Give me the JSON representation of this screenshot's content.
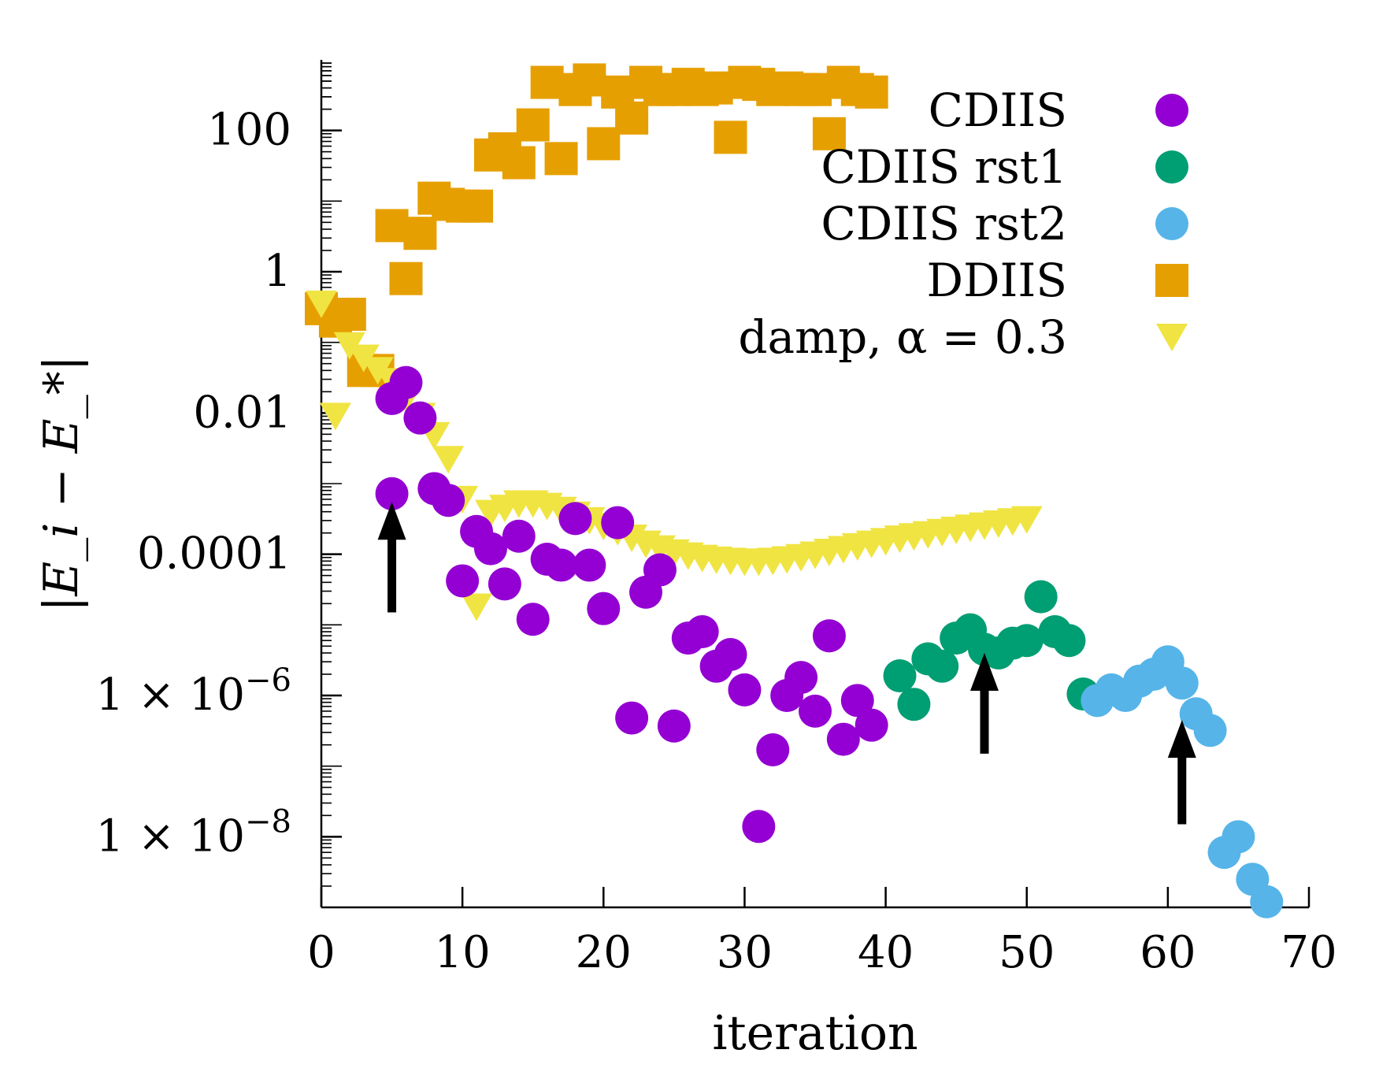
{
  "chart_data": {
    "type": "scatter",
    "xlabel": "iteration",
    "ylabel": "|E_i − E_*|",
    "xlim": [
      0,
      70
    ],
    "ylim_log10": [
      -9,
      3
    ],
    "y_scale": "log",
    "x_ticks": [
      0,
      10,
      20,
      30,
      40,
      50,
      60,
      70
    ],
    "x_tick_labels": [
      "0",
      "10",
      "20",
      "30",
      "40",
      "50",
      "60",
      "70"
    ],
    "y_ticks_log10": [
      2,
      0,
      -2,
      -4,
      -6,
      -8
    ],
    "y_tick_labels": [
      {
        "mantissa": "100",
        "exp": ""
      },
      {
        "mantissa": "1",
        "exp": ""
      },
      {
        "mantissa": "0.01",
        "exp": ""
      },
      {
        "mantissa": "0.0001",
        "exp": ""
      },
      {
        "mantissa": "1 × 10",
        "exp": "−6"
      },
      {
        "mantissa": "1 × 10",
        "exp": "−8"
      }
    ],
    "legend_position": "top-right",
    "series": [
      {
        "name": "CDIIS",
        "color": "#9400d3",
        "marker": "circle",
        "points": [
          [
            5,
            0.016
          ],
          [
            6,
            0.027
          ],
          [
            7,
            0.0085
          ],
          [
            5,
            0.00072
          ],
          [
            8,
            0.00085
          ],
          [
            9,
            0.00058
          ],
          [
            11,
            0.00021
          ],
          [
            12,
            0.00012
          ],
          [
            14,
            0.00018
          ],
          [
            10,
            4.2e-05
          ],
          [
            13,
            3.8e-05
          ],
          [
            15,
            1.2e-05
          ],
          [
            16,
            8.5e-05
          ],
          [
            17,
            7e-05
          ],
          [
            18,
            0.00032
          ],
          [
            19,
            7e-05
          ],
          [
            20,
            1.7e-05
          ],
          [
            21,
            0.00028
          ],
          [
            23,
            2.9e-05
          ],
          [
            24,
            6e-05
          ],
          [
            22,
            4.8e-07
          ],
          [
            25,
            3.7e-07
          ],
          [
            26,
            6.5e-06
          ],
          [
            27,
            8e-06
          ],
          [
            28,
            2.6e-06
          ],
          [
            29,
            3.8e-06
          ],
          [
            30,
            1.2e-06
          ],
          [
            31,
            1.4e-08
          ],
          [
            32,
            1.7e-07
          ],
          [
            33,
            1e-06
          ],
          [
            34,
            1.8e-06
          ],
          [
            35,
            6e-07
          ],
          [
            36,
            7e-06
          ],
          [
            37,
            2.4e-07
          ],
          [
            38,
            8.5e-07
          ],
          [
            39,
            3.8e-07
          ]
        ]
      },
      {
        "name": "CDIIS rst1",
        "color": "#009e73",
        "marker": "circle",
        "points": [
          [
            41,
            1.9e-06
          ],
          [
            42,
            7.5e-07
          ],
          [
            43,
            3.3e-06
          ],
          [
            44,
            2.6e-06
          ],
          [
            45,
            6.5e-06
          ],
          [
            46,
            8.5e-06
          ],
          [
            47,
            4.5e-06
          ],
          [
            48,
            4e-06
          ],
          [
            49,
            5.5e-06
          ],
          [
            50,
            6e-06
          ],
          [
            51,
            2.5e-05
          ],
          [
            52,
            8e-06
          ],
          [
            53,
            6e-06
          ],
          [
            54,
            1.05e-06
          ]
        ]
      },
      {
        "name": "CDIIS rst2",
        "color": "#56b4e9",
        "marker": "circle",
        "points": [
          [
            55,
            8.5e-07
          ],
          [
            56,
            1.2e-06
          ],
          [
            57,
            1e-06
          ],
          [
            58,
            1.6e-06
          ],
          [
            59,
            2e-06
          ],
          [
            60,
            3e-06
          ],
          [
            61,
            1.5e-06
          ],
          [
            62,
            5.5e-07
          ],
          [
            63,
            3.2e-07
          ],
          [
            64,
            6e-09
          ],
          [
            65,
            1e-08
          ],
          [
            66,
            2.5e-09
          ],
          [
            67,
            1.2e-09
          ]
        ]
      },
      {
        "name": "DDIIS",
        "color": "#e69f00",
        "marker": "square",
        "points": [
          [
            0,
            0.3
          ],
          [
            1,
            0.2
          ],
          [
            2,
            0.25
          ],
          [
            3,
            0.04
          ],
          [
            4,
            0.04
          ],
          [
            5,
            4.5
          ],
          [
            6,
            0.8
          ],
          [
            7,
            3.5
          ],
          [
            8,
            11
          ],
          [
            9,
            9
          ],
          [
            10,
            8.5
          ],
          [
            11,
            8.5
          ],
          [
            12,
            45
          ],
          [
            13,
            55
          ],
          [
            14,
            35
          ],
          [
            15,
            120
          ],
          [
            16,
            480
          ],
          [
            17,
            40
          ],
          [
            18,
            380
          ],
          [
            19,
            520
          ],
          [
            20,
            65
          ],
          [
            21,
            350
          ],
          [
            22,
            150
          ],
          [
            23,
            480
          ],
          [
            24,
            380
          ],
          [
            25,
            380
          ],
          [
            26,
            450
          ],
          [
            27,
            380
          ],
          [
            28,
            400
          ],
          [
            29,
            80
          ],
          [
            30,
            480
          ],
          [
            31,
            450
          ],
          [
            32,
            380
          ],
          [
            33,
            400
          ],
          [
            34,
            380
          ],
          [
            35,
            380
          ],
          [
            36,
            90
          ],
          [
            37,
            480
          ],
          [
            38,
            380
          ],
          [
            39,
            350
          ]
        ]
      },
      {
        "name": "damp, α = 0.3",
        "color": "#f0e442",
        "marker": "triangle-down",
        "points": [
          [
            0,
            0.35
          ],
          [
            1,
            0.009
          ],
          [
            2,
            0.09
          ],
          [
            3,
            0.06
          ],
          [
            4,
            0.04
          ],
          [
            5,
            0.028
          ],
          [
            6,
            0.016
          ],
          [
            7,
            0.009
          ],
          [
            8,
            0.0048
          ],
          [
            9,
            0.0022
          ],
          [
            10,
            0.0006
          ],
          [
            11,
            1.8e-05
          ],
          [
            12,
            0.00038
          ],
          [
            13,
            0.00045
          ],
          [
            14,
            0.00052
          ],
          [
            15,
            0.00052
          ],
          [
            16,
            0.00048
          ],
          [
            17,
            0.00042
          ],
          [
            18,
            0.00036
          ],
          [
            19,
            0.0003
          ],
          [
            20,
            0.00025
          ],
          [
            21,
            0.00021
          ],
          [
            22,
            0.00017
          ],
          [
            23,
            0.00014
          ],
          [
            24,
            0.00012
          ],
          [
            25,
            0.000105
          ],
          [
            26,
            9.5e-05
          ],
          [
            27,
            8.8e-05
          ],
          [
            28,
            8.3e-05
          ],
          [
            29,
            8e-05
          ],
          [
            30,
            7.8e-05
          ],
          [
            31,
            7.8e-05
          ],
          [
            32,
            8e-05
          ],
          [
            33,
            8.4e-05
          ],
          [
            34,
            9e-05
          ],
          [
            35,
            9.8e-05
          ],
          [
            36,
            0.000107
          ],
          [
            37,
            0.000117
          ],
          [
            38,
            0.000128
          ],
          [
            39,
            0.00014
          ],
          [
            40,
            0.000152
          ],
          [
            41,
            0.000165
          ],
          [
            42,
            0.000178
          ],
          [
            43,
            0.00019
          ],
          [
            44,
            0.000205
          ],
          [
            45,
            0.00022
          ],
          [
            46,
            0.000236
          ],
          [
            47,
            0.000252
          ],
          [
            48,
            0.00027
          ],
          [
            49,
            0.00029
          ],
          [
            50,
            0.00031
          ]
        ]
      }
    ],
    "arrows": [
      {
        "x": 5,
        "from_y": 1.5e-05,
        "to_y": 0.00055
      },
      {
        "x": 47,
        "from_y": 1.5e-07,
        "to_y": 4e-06
      },
      {
        "x": 61,
        "from_y": 1.5e-08,
        "to_y": 4.5e-07
      }
    ]
  }
}
